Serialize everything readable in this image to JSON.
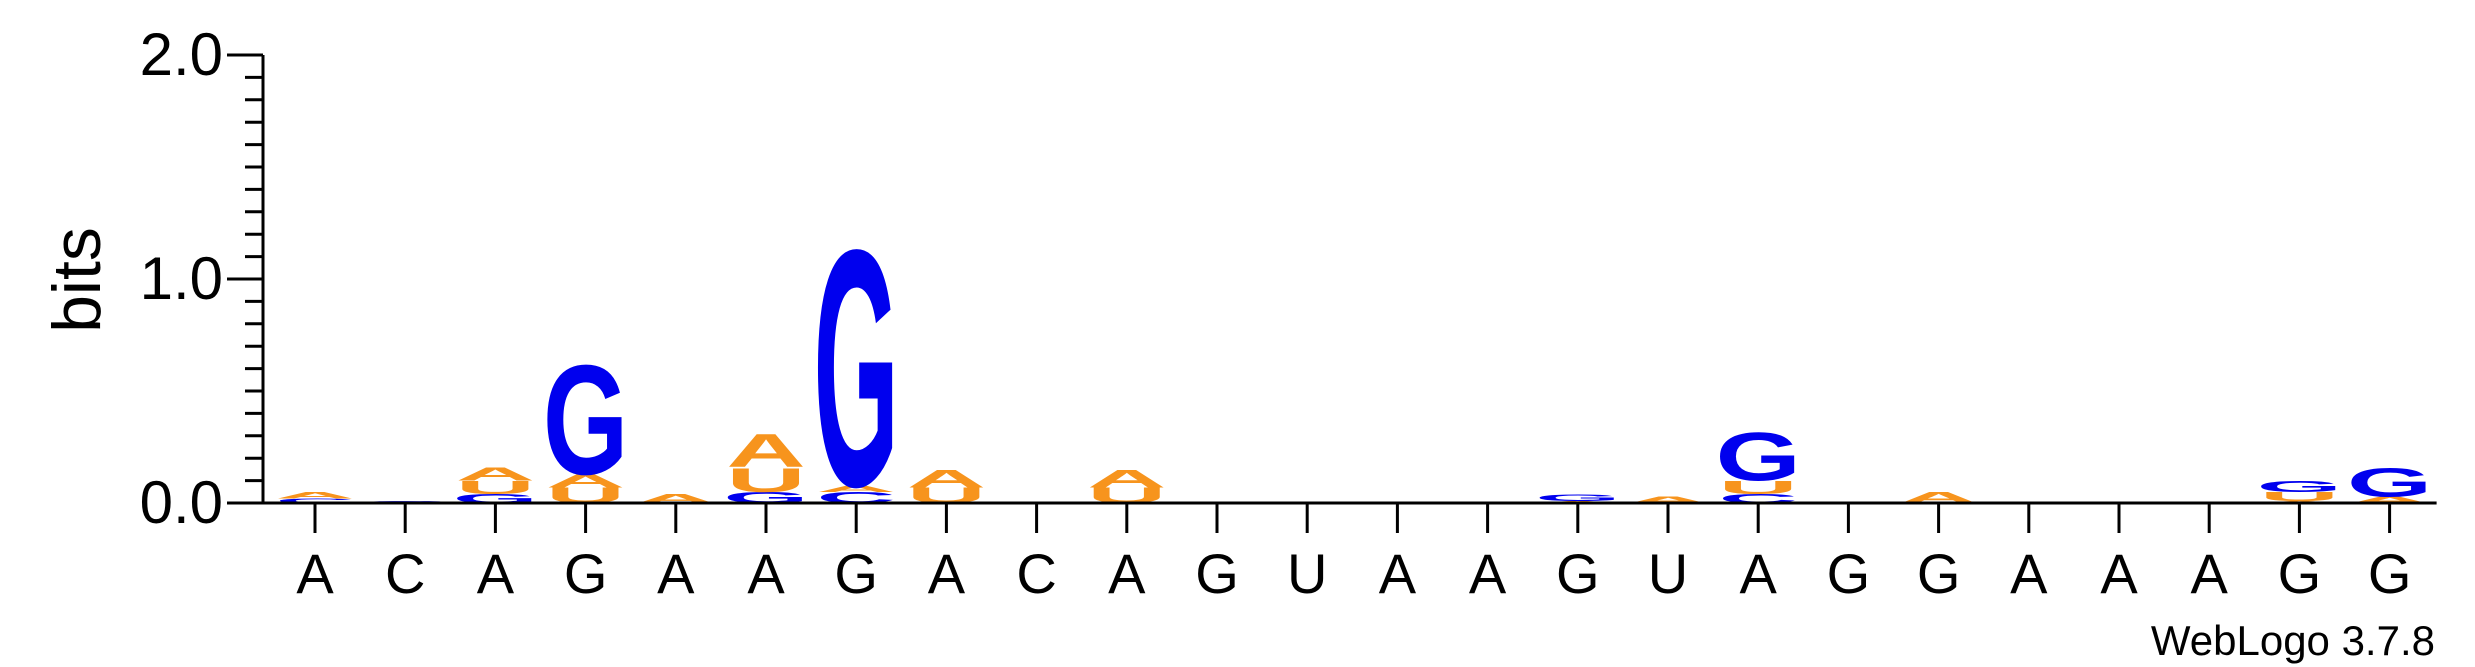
{
  "colors": {
    "A": "#f7941d",
    "U": "#f7941d",
    "G": "#0000ee",
    "C": "#0000ee",
    "axis": "#000000"
  },
  "chart_data": {
    "type": "sequence-logo",
    "title": "",
    "xlabel": "",
    "ylabel": "bits",
    "ylim": [
      0,
      2.0
    ],
    "yticks": [
      "0.0",
      "1.0",
      "2.0"
    ],
    "positions": [
      "A",
      "C",
      "A",
      "G",
      "A",
      "A",
      "G",
      "A",
      "C",
      "A",
      "G",
      "U",
      "A",
      "A",
      "G",
      "U",
      "A",
      "G",
      "G",
      "A",
      "A",
      "A",
      "G",
      "G"
    ],
    "stacks": [
      [
        [
          "C",
          0.02
        ],
        [
          "A",
          0.03
        ]
      ],
      [
        [
          "C",
          0.01
        ]
      ],
      [
        [
          "G",
          0.04
        ],
        [
          "U",
          0.06
        ],
        [
          "A",
          0.06
        ]
      ],
      [
        [
          "U",
          0.07
        ],
        [
          "A",
          0.06
        ],
        [
          "G",
          0.5
        ]
      ],
      [
        [
          "A",
          0.04
        ]
      ],
      [
        [
          "G",
          0.05
        ],
        [
          "U",
          0.11
        ],
        [
          "A",
          0.15
        ]
      ],
      [
        [
          "C",
          0.05
        ],
        [
          "A",
          0.03
        ],
        [
          "G",
          1.08
        ]
      ],
      [
        [
          "U",
          0.07
        ],
        [
          "A",
          0.08
        ]
      ],
      [],
      [
        [
          "U",
          0.07
        ],
        [
          "A",
          0.08
        ]
      ],
      [],
      [],
      [],
      [],
      [
        [
          "A",
          0.01
        ],
        [
          "G",
          0.03
        ]
      ],
      [
        [
          "A",
          0.03
        ]
      ],
      [
        [
          "C",
          0.04
        ],
        [
          "U",
          0.06
        ],
        [
          "G",
          0.22
        ]
      ],
      [],
      [
        [
          "A",
          0.05
        ]
      ],
      [],
      [],
      [],
      [
        [
          "A",
          0.01
        ],
        [
          "U",
          0.04
        ],
        [
          "G",
          0.05
        ]
      ],
      [
        [
          "A",
          0.03
        ],
        [
          "G",
          0.13
        ]
      ]
    ]
  },
  "footer": "WebLogo 3.7.8"
}
